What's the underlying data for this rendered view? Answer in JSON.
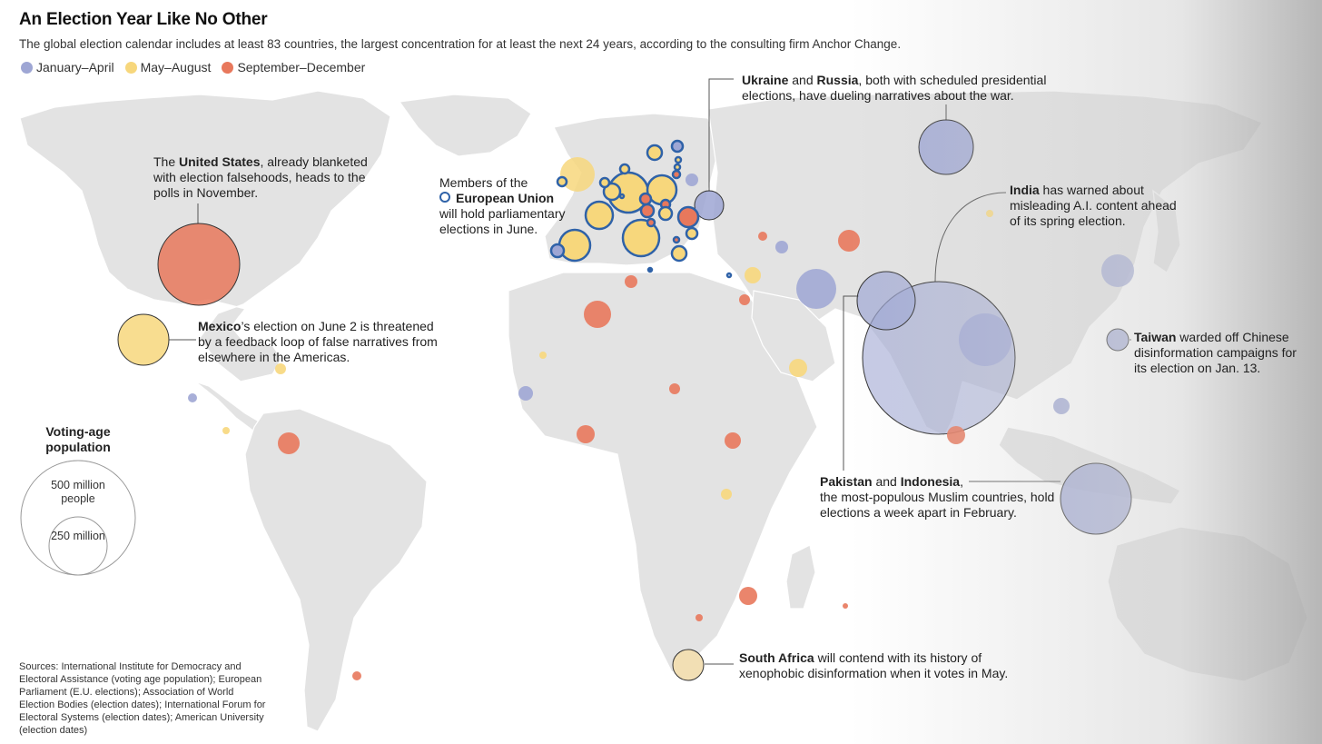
{
  "title": "An Election Year Like No Other",
  "subtitle": "The global election calendar includes at least 83 countries, the largest concentration for at least the next 24 years, according to the consulting firm Anchor Change.",
  "colors": {
    "jan_apr": "#9ea6d4",
    "may_aug": "#f7d77c",
    "sep_dec": "#e8785c",
    "eu_outline": "#2f62a8",
    "land": "#e3e3e3"
  },
  "legend": [
    {
      "label": "January–April",
      "color": "#9ea6d4"
    },
    {
      "label": "May–August",
      "color": "#f7d77c"
    },
    {
      "label": "September–December",
      "color": "#e8785c"
    }
  ],
  "annotations": {
    "us": {
      "pre": "The ",
      "bold": "United States",
      "post": ", already blanketed with election falsehoods, heads to the polls in November."
    },
    "mexico": {
      "bold": "Mexico",
      "post": "’s election on June 2 is threatened by a feedback loop of false narratives from elsewhere in the Americas."
    },
    "eu": {
      "pre": "Members of the",
      "bold": "European Union",
      "post": "will hold parliamentary elections in June."
    },
    "ukraine_russia": {
      "bold1": "Ukraine",
      "mid": " and ",
      "bold2": "Russia",
      "post": ", both with scheduled presidential elections, have dueling narratives about the war."
    },
    "india": {
      "bold": "India",
      "post": " has warned about misleading A.I. content ahead of its spring election."
    },
    "taiwan": {
      "bold": "Taiwan",
      "post": " warded off Chinese disinformation campaigns for its election on Jan. 13."
    },
    "pakistan_indonesia": {
      "bold1": "Pakistan",
      "mid": " and ",
      "bold2": "Indonesia",
      "post1": ",",
      "post2": "the most-populous Muslim countries, hold elections a week apart in February."
    },
    "south_africa": {
      "bold": "South Africa",
      "post": " will contend with its history of xenophobic disinformation when it votes in May."
    }
  },
  "size_legend": {
    "title": "Voting-age population",
    "large": "500 million people",
    "small": "250 million"
  },
  "sources": "Sources: International Institute for Democracy and Electoral Assistance (voting age population); European Parliament (E.U. elections); Association of World Election Bodies (election dates); International Forum for Electoral Systems (election dates); American University (election dates)",
  "bubbles": [
    {
      "country": "United States",
      "period": "sep_dec",
      "population_m": 260
    },
    {
      "country": "Mexico",
      "period": "may_aug",
      "population_m": 95
    },
    {
      "country": "India",
      "period": "jan_apr",
      "population_m": 950
    },
    {
      "country": "Indonesia",
      "period": "jan_apr",
      "population_m": 200
    },
    {
      "country": "Pakistan",
      "period": "jan_apr",
      "population_m": 130
    },
    {
      "country": "Russia",
      "period": "jan_apr",
      "population_m": 115
    },
    {
      "country": "Bangladesh",
      "period": "jan_apr",
      "population_m": 110
    },
    {
      "country": "Iran",
      "period": "jan_apr",
      "population_m": 62
    },
    {
      "country": "South Korea",
      "period": "jan_apr",
      "population_m": 44
    },
    {
      "country": "Ukraine",
      "period": "jan_apr",
      "population_m": 35
    },
    {
      "country": "Taiwan",
      "period": "jan_apr",
      "population_m": 19
    },
    {
      "country": "Venezuela",
      "period": "sep_dec",
      "population_m": 21
    },
    {
      "country": "Algeria",
      "period": "sep_dec",
      "population_m": 30
    },
    {
      "country": "Uzbekistan",
      "period": "sep_dec",
      "population_m": 22
    },
    {
      "country": "South Africa",
      "period": "may_aug",
      "population_m": 40
    }
  ]
}
